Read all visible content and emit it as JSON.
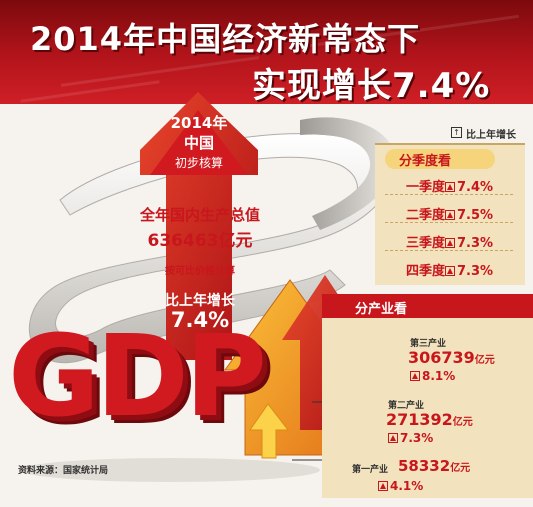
{
  "header": {
    "title_line1": "2014年中国经济新常态下",
    "title_line2": "实现增长7.4%"
  },
  "arrow_panel": {
    "year_label": "2014年",
    "country_label": "中国",
    "subtitle": "初步核算",
    "gdp_label": "全年国内生产总值",
    "gdp_value": "636463亿元",
    "note": "按可比价格计算",
    "growth_label": "比上年增长",
    "growth_value": "7.4%"
  },
  "gdp_word": "GDP",
  "legend": {
    "icon": "up-arrow-box-icon",
    "label": "比上年增长"
  },
  "source": "资料来源：国家统计局",
  "colors": {
    "brand_red": "#c8161d",
    "banner_dark": "#7c0a0d",
    "panel_tan": "#f2e2bd",
    "pill_yellow": "#f5d47c",
    "arrow_orange": "#f39a1e"
  },
  "chart_data": [
    {
      "type": "table",
      "title": "分季度看",
      "unit": "%",
      "categories": [
        "一季度",
        "二季度",
        "三季度",
        "四季度"
      ],
      "values": [
        7.4,
        7.5,
        7.3,
        7.3
      ],
      "labels": [
        "7.4%",
        "7.5%",
        "7.3%",
        "7.3%"
      ]
    },
    {
      "type": "table",
      "title": "分产业看",
      "unit": "亿元",
      "categories": [
        "第三产业",
        "第二产业",
        "第一产业"
      ],
      "values": [
        306739,
        271392,
        58332
      ],
      "value_labels": [
        "306739",
        "271392",
        "58332"
      ],
      "growth": [
        8.1,
        7.3,
        4.1
      ],
      "growth_labels": [
        "8.1%",
        "7.3%",
        "4.1%"
      ]
    }
  ]
}
